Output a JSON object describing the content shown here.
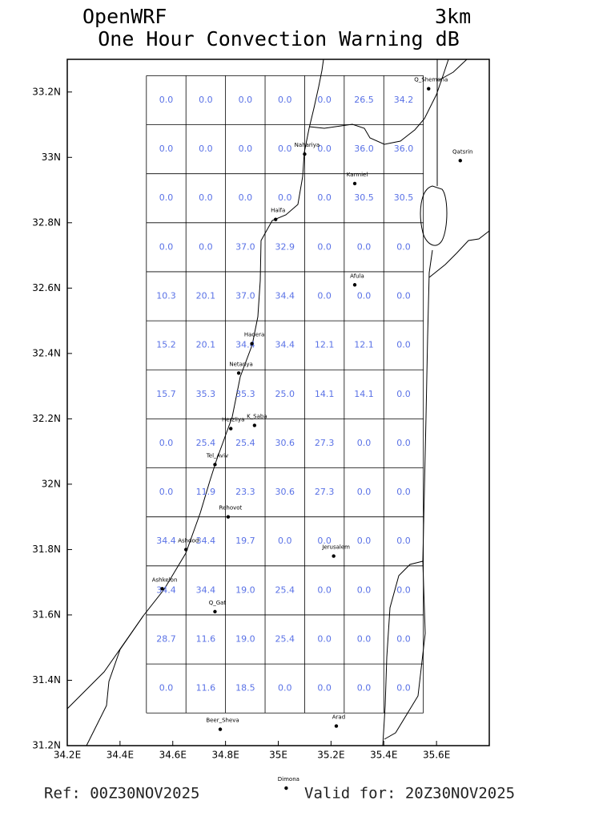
{
  "header": {
    "title": "OpenWRF",
    "resolution": "3km",
    "subtitle": "One Hour Convection Warning dB"
  },
  "map": {
    "lonlim": [
      34.2,
      35.8
    ],
    "latlim": [
      31.2,
      33.3
    ],
    "xticks": [
      {
        "value": 34.2,
        "label": "34.2E"
      },
      {
        "value": 34.4,
        "label": "34.4E"
      },
      {
        "value": 34.6,
        "label": "34.6E"
      },
      {
        "value": 34.8,
        "label": "34.8E"
      },
      {
        "value": 35.0,
        "label": "35E"
      },
      {
        "value": 35.2,
        "label": "35.2E"
      },
      {
        "value": 35.4,
        "label": "35.4E"
      },
      {
        "value": 35.6,
        "label": "35.6E"
      }
    ],
    "yticks": [
      {
        "value": 31.2,
        "label": "31.2N"
      },
      {
        "value": 31.4,
        "label": "31.4N"
      },
      {
        "value": 31.6,
        "label": "31.6N"
      },
      {
        "value": 31.8,
        "label": "31.8N"
      },
      {
        "value": 32.0,
        "label": "32N"
      },
      {
        "value": 32.2,
        "label": "32.2N"
      },
      {
        "value": 32.4,
        "label": "32.4N"
      },
      {
        "value": 32.6,
        "label": "32.6N"
      },
      {
        "value": 32.8,
        "label": "32.8N"
      },
      {
        "value": 33.0,
        "label": "33N"
      },
      {
        "value": 33.2,
        "label": "33.2N"
      }
    ],
    "grid": {
      "lon": [
        34.5,
        35.55
      ],
      "lat": [
        31.3,
        33.25
      ]
    },
    "cells": [
      [
        "0.0",
        "0.0",
        "0.0",
        "0.0",
        "0.0",
        "26.5",
        "34.2"
      ],
      [
        "0.0",
        "0.0",
        "0.0",
        "0.0",
        "0.0",
        "36.0",
        "36.0"
      ],
      [
        "0.0",
        "0.0",
        "0.0",
        "0.0",
        "0.0",
        "30.5",
        "30.5"
      ],
      [
        "0.0",
        "0.0",
        "37.0",
        "32.9",
        "0.0",
        "0.0",
        "0.0"
      ],
      [
        "10.3",
        "20.1",
        "37.0",
        "34.4",
        "0.0",
        "0.0",
        "0.0"
      ],
      [
        "15.2",
        "20.1",
        "34.4",
        "34.4",
        "12.1",
        "12.1",
        "0.0"
      ],
      [
        "15.7",
        "35.3",
        "35.3",
        "25.0",
        "14.1",
        "14.1",
        "0.0"
      ],
      [
        "0.0",
        "25.4",
        "25.4",
        "30.6",
        "27.3",
        "0.0",
        "0.0"
      ],
      [
        "0.0",
        "11.9",
        "23.3",
        "30.6",
        "27.3",
        "0.0",
        "0.0"
      ],
      [
        "34.4",
        "34.4",
        "19.7",
        "0.0",
        "0.0",
        "0.0",
        "0.0"
      ],
      [
        "34.4",
        "34.4",
        "19.0",
        "25.4",
        "0.0",
        "0.0",
        "0.0"
      ],
      [
        "28.7",
        "11.6",
        "19.0",
        "25.4",
        "0.0",
        "0.0",
        "0.0"
      ],
      [
        "0.0",
        "11.6",
        "18.5",
        "0.0",
        "0.0",
        "0.0",
        "0.0"
      ]
    ],
    "cities": [
      {
        "name": "Q_Shemona",
        "lon": 35.57,
        "lat": 33.21
      },
      {
        "name": "Qatsrin",
        "lon": 35.69,
        "lat": 32.99
      },
      {
        "name": "Nahariya",
        "lon": 35.1,
        "lat": 33.01
      },
      {
        "name": "Karmiel",
        "lon": 35.29,
        "lat": 32.92
      },
      {
        "name": "Haifa",
        "lon": 34.99,
        "lat": 32.81
      },
      {
        "name": "Afula",
        "lon": 35.29,
        "lat": 32.61
      },
      {
        "name": "Hadera",
        "lon": 34.9,
        "lat": 32.43
      },
      {
        "name": "Netanya",
        "lon": 34.85,
        "lat": 32.34
      },
      {
        "name": "K_Saba",
        "lon": 34.91,
        "lat": 32.18
      },
      {
        "name": "Herzliya",
        "lon": 34.82,
        "lat": 32.17
      },
      {
        "name": "Tel_Aviv",
        "lon": 34.76,
        "lat": 32.06
      },
      {
        "name": "Rehovot",
        "lon": 34.81,
        "lat": 31.9
      },
      {
        "name": "Ashdod",
        "lon": 34.65,
        "lat": 31.8
      },
      {
        "name": "Jerusalem",
        "lon": 35.21,
        "lat": 31.78
      },
      {
        "name": "Ashkelon",
        "lon": 34.56,
        "lat": 31.68
      },
      {
        "name": "Q_Gat",
        "lon": 34.76,
        "lat": 31.61
      },
      {
        "name": "Beer_Sheva",
        "lon": 34.78,
        "lat": 31.25
      },
      {
        "name": "Arad",
        "lon": 35.22,
        "lat": 31.26
      },
      {
        "name": "Dimona",
        "lon": 35.03,
        "lat": 31.07
      }
    ]
  },
  "footer": {
    "ref": "Ref: 00Z30NOV2025",
    "valid": "Valid for: 20Z30NOV2025"
  }
}
